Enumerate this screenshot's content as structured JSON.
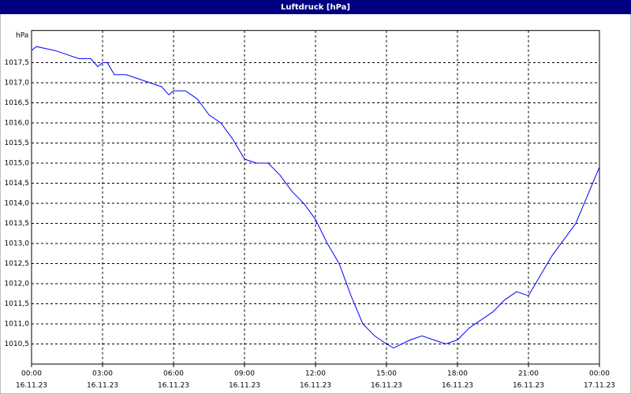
{
  "chart_data": {
    "type": "line",
    "title": "Luftdruck [hPa]",
    "y_label": "hPa",
    "grid": true,
    "color": "#0000ff",
    "xlim": [
      0,
      24
    ],
    "ylim": [
      1010.0,
      1018.3
    ],
    "xticks": [
      {
        "value": 0,
        "label": "00:00"
      },
      {
        "value": 3,
        "label": "03:00"
      },
      {
        "value": 6,
        "label": "06:00"
      },
      {
        "value": 9,
        "label": "09:00"
      },
      {
        "value": 12,
        "label": "12:00"
      },
      {
        "value": 15,
        "label": "15:00"
      },
      {
        "value": 18,
        "label": "18:00"
      },
      {
        "value": 21,
        "label": "21:00"
      },
      {
        "value": 24,
        "label": "00:00"
      }
    ],
    "xtick_dates": [
      "16.11.23",
      "16.11.23",
      "16.11.23",
      "16.11.23",
      "16.11.23",
      "16.11.23",
      "16.11.23",
      "16.11.23",
      "17.11.23"
    ],
    "yticks": [
      {
        "value": 1010.5,
        "label": "1010,5"
      },
      {
        "value": 1011.0,
        "label": "1011,0"
      },
      {
        "value": 1011.5,
        "label": "1011,5"
      },
      {
        "value": 1012.0,
        "label": "1012,0"
      },
      {
        "value": 1012.5,
        "label": "1012,5"
      },
      {
        "value": 1013.0,
        "label": "1013,0"
      },
      {
        "value": 1013.5,
        "label": "1013,5"
      },
      {
        "value": 1014.0,
        "label": "1014,0"
      },
      {
        "value": 1014.5,
        "label": "1014,5"
      },
      {
        "value": 1015.0,
        "label": "1015,0"
      },
      {
        "value": 1015.5,
        "label": "1015,5"
      },
      {
        "value": 1016.0,
        "label": "1016,0"
      },
      {
        "value": 1016.5,
        "label": "1016,5"
      },
      {
        "value": 1017.0,
        "label": "1017,0"
      },
      {
        "value": 1017.5,
        "label": "1017,5"
      }
    ],
    "x": [
      0,
      0.2,
      1,
      1.5,
      2,
      2.5,
      2.8,
      3,
      3.2,
      3.5,
      4,
      4.5,
      5,
      5.5,
      5.8,
      6,
      6.5,
      7,
      7.5,
      8,
      8.5,
      9,
      9.5,
      10,
      10.5,
      11,
      11.5,
      12,
      12.5,
      13,
      13.5,
      14,
      14.5,
      15,
      15.3,
      16,
      16.5,
      17,
      17.5,
      18,
      18.5,
      19,
      19.5,
      20,
      20.5,
      21,
      21.5,
      22,
      22.5,
      23,
      23.5,
      24
    ],
    "values": [
      1017.8,
      1017.9,
      1017.8,
      1017.7,
      1017.6,
      1017.6,
      1017.4,
      1017.5,
      1017.5,
      1017.2,
      1017.2,
      1017.1,
      1017.0,
      1016.9,
      1016.7,
      1016.8,
      1016.8,
      1016.6,
      1016.2,
      1016.0,
      1015.6,
      1015.1,
      1015.0,
      1015.0,
      1014.7,
      1014.3,
      1014.0,
      1013.6,
      1013.0,
      1012.5,
      1011.7,
      1011.0,
      1010.7,
      1010.5,
      1010.4,
      1010.6,
      1010.7,
      1010.6,
      1010.5,
      1010.6,
      1010.9,
      1011.1,
      1011.3,
      1011.6,
      1011.8,
      1011.7,
      1012.2,
      1012.7,
      1013.1,
      1013.5,
      1014.2,
      1014.9
    ]
  }
}
